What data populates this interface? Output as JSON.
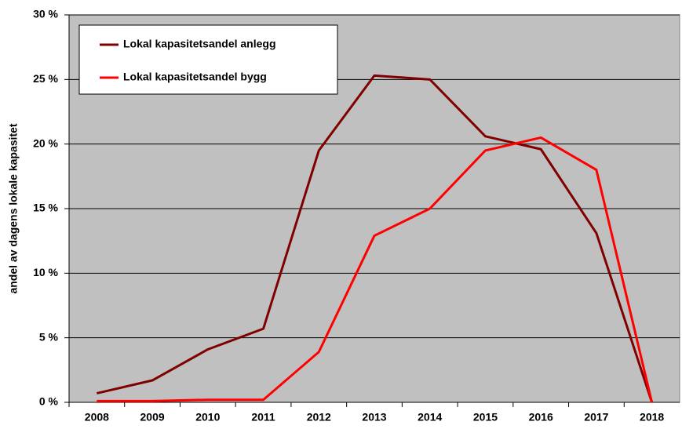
{
  "chart_data": {
    "type": "line",
    "y_label": "andel av dagens lokale kapasitet",
    "categories": [
      "2008",
      "2009",
      "2010",
      "2011",
      "2012",
      "2013",
      "2014",
      "2015",
      "2016",
      "2017",
      "2018"
    ],
    "series": [
      {
        "name": "Lokal kapasitetsandel anlegg",
        "color": "#800000",
        "values": [
          0.7,
          1.7,
          4.1,
          5.7,
          19.5,
          25.3,
          25.0,
          20.6,
          19.6,
          13.1,
          0
        ]
      },
      {
        "name": "Lokal kapasitetsandel bygg",
        "color": "#ff0000",
        "values": [
          0.1,
          0.1,
          0.2,
          0.2,
          3.9,
          12.9,
          15.0,
          19.5,
          20.5,
          18.0,
          0
        ]
      }
    ],
    "ylim": [
      0,
      30
    ],
    "yticks": [
      {
        "value": 0,
        "label": "0 %"
      },
      {
        "value": 5,
        "label": "5 %"
      },
      {
        "value": 10,
        "label": "10 %"
      },
      {
        "value": 15,
        "label": "15 %"
      },
      {
        "value": 20,
        "label": "20 %"
      },
      {
        "value": 25,
        "label": "25 %"
      },
      {
        "value": 30,
        "label": "30 %"
      }
    ],
    "grid": true,
    "background": "#c0c0c0",
    "legend": "upper left"
  }
}
